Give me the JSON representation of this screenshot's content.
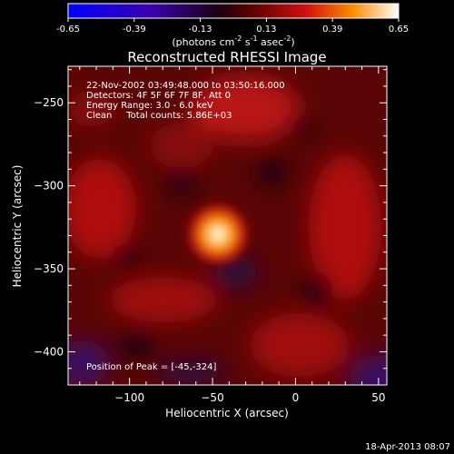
{
  "colorbar": {
    "ticks": [
      "-0.65",
      "-0.39",
      "-0.13",
      "0.13",
      "0.39",
      "0.65"
    ],
    "units_main": "(photons cm",
    "units_sup1": "-2",
    "units_mid": " s",
    "units_sup2": "-1",
    "units_end": " asec",
    "units_sup3": "-2",
    "units_close": ")",
    "range": [
      -0.65,
      0.65
    ]
  },
  "chart_data": {
    "type": "heatmap",
    "title": "Reconstructed RHESSI Image",
    "xlabel": "Heliocentric X (arcsec)",
    "ylabel": "Heliocentric Y (arcsec)",
    "xlim": [
      -137,
      55
    ],
    "ylim": [
      -420,
      -228
    ],
    "x_ticks": [
      -100,
      -50,
      0,
      50
    ],
    "y_ticks": [
      -250,
      -300,
      -350,
      -400
    ],
    "x_tick_labels": [
      "−100",
      "−50",
      "0",
      "50"
    ],
    "y_tick_labels": [
      "−250",
      "−300",
      "−350",
      "−400"
    ],
    "annotations": [
      "22-Nov-2002 03:49:48.000 to 03:50:16.000",
      "Detectors: 4F 5F 6F 7F 8F, Att 0",
      "Energy Range: 3.0 - 6.0 keV",
      "Clean     Total counts: 5.86E+03"
    ],
    "peak_label": "Position of Peak = [-45,-324]",
    "peak": [
      -45,
      -324
    ]
  },
  "timestamp": "18-Apr-2013 08:07"
}
